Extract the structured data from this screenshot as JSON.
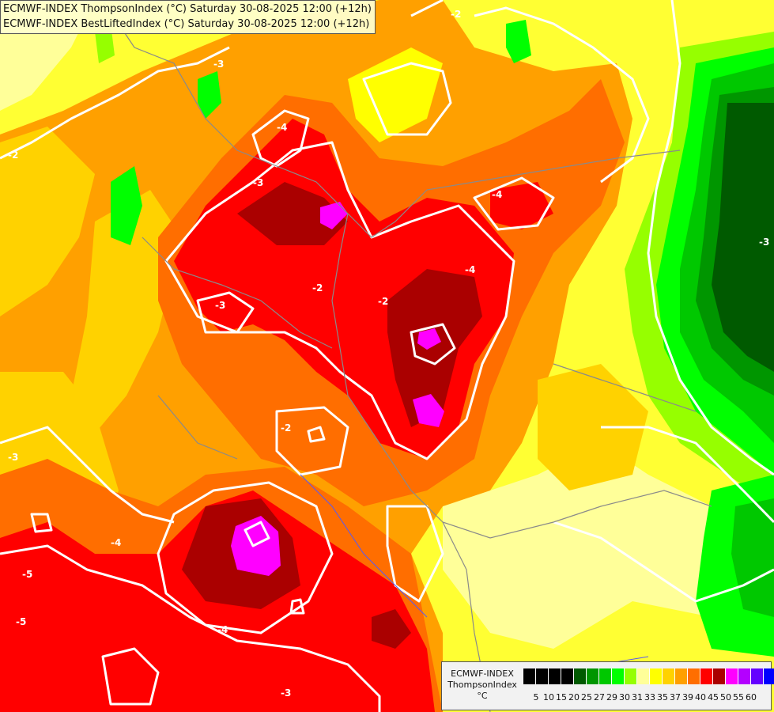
{
  "title": {
    "line1": "ECMWF-INDEX ThompsonIndex (°C) Saturday 30-08-2025 12:00 (+12h)",
    "line2": "ECMWF-INDEX BestLiftedIndex (°C) Saturday 30-08-2025 12:00 (+12h)"
  },
  "legend": {
    "line1": "ECMWF-INDEX",
    "line2": "ThompsonIndex",
    "line3": "°C",
    "colors": [
      "#000000",
      "#000000",
      "#000000",
      "#000000",
      "#005a00",
      "#009600",
      "#00c800",
      "#00ff00",
      "#96ff00",
      "#ffff99",
      "#ffff00",
      "#ffd200",
      "#ffa000",
      "#ff6e00",
      "#ff0000",
      "#aa0000",
      "#ff00ff",
      "#b400ff",
      "#6400ff",
      "#0000ff"
    ],
    "ticks": [
      "5",
      "10",
      "15",
      "20",
      "25",
      "27",
      "29",
      "30",
      "31",
      "33",
      "35",
      "37",
      "39",
      "40",
      "45",
      "50",
      "55",
      "60"
    ]
  },
  "contour_labels": [
    "-3",
    "-2",
    "-4",
    "-3",
    "-2",
    "-4",
    "-3",
    "-2",
    "-4",
    "-3",
    "-2",
    "-2",
    "-3",
    "-4",
    "-5",
    "-5",
    "-4",
    "-3"
  ]
}
